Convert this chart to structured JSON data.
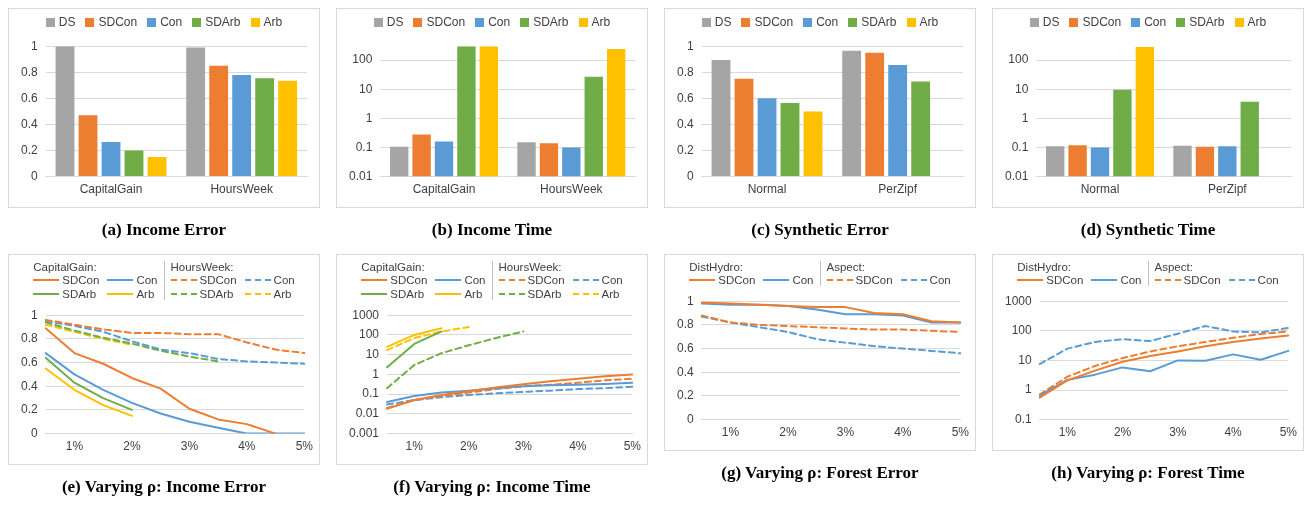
{
  "chart_data": [
    {
      "type": "bar",
      "title": "(a) Income Error",
      "categories": [
        "CapitalGain",
        "HoursWeek"
      ],
      "ylim": [
        0,
        1
      ],
      "yticks": [
        0,
        0.2,
        0.4,
        0.6,
        0.8,
        1
      ],
      "grid": "y",
      "legend": "top",
      "series": [
        {
          "name": "DS",
          "color": "#a5a5a5",
          "values": [
            1.0,
            0.99
          ]
        },
        {
          "name": "SDCon",
          "color": "#ed7d31",
          "values": [
            0.47,
            0.85
          ]
        },
        {
          "name": "Con",
          "color": "#5b9bd5",
          "values": [
            0.265,
            0.78
          ]
        },
        {
          "name": "SDArb",
          "color": "#70ad47",
          "values": [
            0.2,
            0.755
          ]
        },
        {
          "name": "Arb",
          "color": "#ffc000",
          "values": [
            0.15,
            0.735
          ]
        }
      ]
    },
    {
      "type": "bar",
      "title": "(b) Income Time",
      "categories": [
        "CapitalGain",
        "HoursWeek"
      ],
      "log": true,
      "ylim": [
        0.01,
        300
      ],
      "yticks": [
        0.01,
        0.1,
        1,
        10,
        100
      ],
      "grid": "y",
      "legend": "top",
      "series": [
        {
          "name": "DS",
          "color": "#a5a5a5",
          "values": [
            0.105,
            0.15
          ]
        },
        {
          "name": "SDCon",
          "color": "#ed7d31",
          "values": [
            0.28,
            0.14
          ]
        },
        {
          "name": "Con",
          "color": "#5b9bd5",
          "values": [
            0.16,
            0.1
          ]
        },
        {
          "name": "SDArb",
          "color": "#70ad47",
          "values": [
            300,
            27
          ]
        },
        {
          "name": "Arb",
          "color": "#ffc000",
          "values": [
            300,
            240
          ]
        }
      ]
    },
    {
      "type": "bar",
      "title": "(c) Synthetic Error",
      "categories": [
        "Normal",
        "PerZipf"
      ],
      "ylim": [
        0,
        1
      ],
      "yticks": [
        0,
        0.2,
        0.4,
        0.6,
        0.8,
        1
      ],
      "grid": "y",
      "legend": "top",
      "series": [
        {
          "name": "DS",
          "color": "#a5a5a5",
          "values": [
            0.895,
            0.965
          ]
        },
        {
          "name": "SDCon",
          "color": "#ed7d31",
          "values": [
            0.75,
            0.95
          ]
        },
        {
          "name": "Con",
          "color": "#5b9bd5",
          "values": [
            0.6,
            0.855
          ]
        },
        {
          "name": "SDArb",
          "color": "#70ad47",
          "values": [
            0.565,
            0.73
          ]
        },
        {
          "name": "Arb",
          "color": "#ffc000",
          "values": [
            0.5,
            null
          ]
        }
      ]
    },
    {
      "type": "bar",
      "title": "(d) Synthetic Time",
      "categories": [
        "Normal",
        "PerZipf"
      ],
      "log": true,
      "ylim": [
        0.01,
        300
      ],
      "yticks": [
        0.01,
        0.1,
        1,
        10,
        100
      ],
      "grid": "y",
      "legend": "top",
      "series": [
        {
          "name": "DS",
          "color": "#a5a5a5",
          "values": [
            0.11,
            0.115
          ]
        },
        {
          "name": "SDCon",
          "color": "#ed7d31",
          "values": [
            0.12,
            0.105
          ]
        },
        {
          "name": "Con",
          "color": "#5b9bd5",
          "values": [
            0.1,
            0.11
          ]
        },
        {
          "name": "SDArb",
          "color": "#70ad47",
          "values": [
            9.5,
            3.7
          ]
        },
        {
          "name": "Arb",
          "color": "#ffc000",
          "values": [
            280,
            null
          ]
        }
      ]
    },
    {
      "type": "line",
      "title": "(e) Varying ρ: Income Error",
      "categories": [
        null,
        "1%",
        null,
        "2%",
        null,
        "3%",
        null,
        "4%",
        null,
        "5%"
      ],
      "ylim": [
        0,
        1
      ],
      "yticks": [
        0,
        0.2,
        0.4,
        0.6,
        0.8,
        1
      ],
      "grid": "y",
      "legend": "top",
      "annotations": [
        "CapitalGain:",
        "HoursWeek:"
      ],
      "series": [
        {
          "name": "SDCon",
          "color": "#ed7d31",
          "line_style": "solid",
          "values": [
            0.89,
            0.68,
            0.59,
            0.47,
            0.38,
            0.21,
            0.12,
            0.08,
            0,
            null
          ]
        },
        {
          "name": "Con",
          "color": "#5b9bd5",
          "line_style": "solid",
          "values": [
            0.68,
            0.5,
            0.37,
            0.26,
            0.17,
            0.1,
            0.05,
            0,
            0,
            0
          ]
        },
        {
          "name": "SDArb",
          "color": "#70ad47",
          "line_style": "solid",
          "values": [
            0.64,
            0.43,
            0.3,
            0.2,
            null,
            null,
            null,
            null,
            null,
            null
          ]
        },
        {
          "name": "Arb",
          "color": "#ffc000",
          "line_style": "solid",
          "values": [
            0.55,
            0.37,
            0.24,
            0.15,
            null,
            null,
            null,
            null,
            null,
            null
          ]
        },
        {
          "name": "SDCon",
          "color": "#ed7d31",
          "line_style": "dashed",
          "values": [
            0.96,
            0.92,
            0.88,
            0.85,
            0.85,
            0.84,
            0.84,
            0.77,
            0.71,
            0.68
          ]
        },
        {
          "name": "Con",
          "color": "#5b9bd5",
          "line_style": "dashed",
          "values": [
            0.95,
            0.91,
            0.86,
            0.78,
            0.71,
            0.68,
            0.63,
            0.61,
            0.6,
            0.59
          ]
        },
        {
          "name": "SDArb",
          "color": "#70ad47",
          "line_style": "dashed",
          "values": [
            0.94,
            0.87,
            0.81,
            0.76,
            0.7,
            0.65,
            0.61,
            null,
            null,
            null
          ]
        },
        {
          "name": "Arb",
          "color": "#ffc000",
          "line_style": "dashed",
          "values": [
            0.92,
            0.86,
            0.8,
            0.75,
            null,
            null,
            null,
            null,
            null,
            null
          ]
        }
      ]
    },
    {
      "type": "line",
      "title": "(f) Varying ρ: Income Time",
      "categories": [
        null,
        "1%",
        null,
        "2%",
        null,
        "3%",
        null,
        "4%",
        null,
        "5%"
      ],
      "log": true,
      "ylim": [
        0.001,
        1000
      ],
      "yticks": [
        0.001,
        0.01,
        0.1,
        1,
        10,
        100,
        1000
      ],
      "grid": "y",
      "legend": "top",
      "annotations": [
        "CapitalGain:",
        "HoursWeek:"
      ],
      "series": [
        {
          "name": "SDCon",
          "color": "#ed7d31",
          "line_style": "solid",
          "values": [
            0.018,
            0.05,
            0.09,
            0.14,
            0.22,
            0.32,
            0.45,
            0.6,
            0.8,
            1.0
          ]
        },
        {
          "name": "Con",
          "color": "#5b9bd5",
          "line_style": "solid",
          "values": [
            0.04,
            0.08,
            0.12,
            0.15,
            0.2,
            0.25,
            0.28,
            0.3,
            0.33,
            0.38
          ]
        },
        {
          "name": "SDArb",
          "color": "#70ad47",
          "line_style": "solid",
          "values": [
            2.3,
            35,
            150,
            null,
            null,
            null,
            null,
            null,
            null,
            null
          ]
        },
        {
          "name": "Arb",
          "color": "#ffc000",
          "line_style": "solid",
          "values": [
            25,
            100,
            220,
            null,
            null,
            null,
            null,
            null,
            null,
            null
          ]
        },
        {
          "name": "SDCon",
          "color": "#ed7d31",
          "line_style": "dashed",
          "values": [
            0.02,
            0.05,
            0.08,
            0.12,
            0.18,
            0.25,
            0.3,
            0.38,
            0.5,
            0.6
          ]
        },
        {
          "name": "Con",
          "color": "#5b9bd5",
          "line_style": "dashed",
          "values": [
            0.03,
            0.05,
            0.07,
            0.09,
            0.11,
            0.13,
            0.15,
            0.18,
            0.2,
            0.24
          ]
        },
        {
          "name": "SDArb",
          "color": "#70ad47",
          "line_style": "dashed",
          "values": [
            0.2,
            3,
            12,
            30,
            70,
            150,
            null,
            null,
            null,
            null
          ]
        },
        {
          "name": "Arb",
          "color": "#ffc000",
          "line_style": "dashed",
          "values": [
            17,
            70,
            150,
            250,
            null,
            null,
            null,
            null,
            null,
            null
          ]
        }
      ]
    },
    {
      "type": "line",
      "title": "(g) Varying ρ: Forest Error",
      "categories": [
        null,
        "1%",
        null,
        "2%",
        null,
        "3%",
        null,
        "4%",
        null,
        "5%"
      ],
      "ylim": [
        0,
        1
      ],
      "yticks": [
        0,
        0.2,
        0.4,
        0.6,
        0.8,
        1
      ],
      "grid": "y",
      "legend": "top",
      "annotations": [
        "DistHydro:",
        "Aspect:"
      ],
      "series": [
        {
          "name": "SDCon",
          "color": "#ed7d31",
          "line_style": "solid",
          "values": [
            0.99,
            0.98,
            0.97,
            0.96,
            0.95,
            0.95,
            0.9,
            0.89,
            0.83,
            0.82
          ]
        },
        {
          "name": "Con",
          "color": "#5b9bd5",
          "line_style": "solid",
          "values": [
            0.98,
            0.97,
            0.97,
            0.96,
            0.93,
            0.89,
            0.89,
            0.88,
            0.82,
            0.82
          ]
        },
        {
          "name": "SDCon",
          "color": "#ed7d31",
          "line_style": "dashed",
          "values": [
            0.88,
            0.82,
            0.8,
            0.79,
            0.78,
            0.77,
            0.76,
            0.76,
            0.75,
            0.74
          ]
        },
        {
          "name": "Con",
          "color": "#5b9bd5",
          "line_style": "dashed",
          "values": [
            0.87,
            0.82,
            0.78,
            0.74,
            0.68,
            0.65,
            0.62,
            0.6,
            0.58,
            0.56
          ]
        }
      ]
    },
    {
      "type": "line",
      "title": "(h) Varying ρ: Forest Time",
      "categories": [
        null,
        "1%",
        null,
        "2%",
        null,
        "3%",
        null,
        "4%",
        null,
        "5%"
      ],
      "log": true,
      "ylim": [
        0.1,
        1000
      ],
      "yticks": [
        0.1,
        1,
        10,
        100,
        1000
      ],
      "grid": "y",
      "legend": "top",
      "annotations": [
        "DistHydro:",
        "Aspect:"
      ],
      "series": [
        {
          "name": "SDCon",
          "color": "#ed7d31",
          "line_style": "solid",
          "values": [
            0.55,
            2.1,
            4.5,
            9,
            14,
            20,
            30,
            42,
            55,
            70
          ]
        },
        {
          "name": "Con",
          "color": "#5b9bd5",
          "line_style": "solid",
          "values": [
            0.65,
            2.2,
            3.3,
            5.8,
            4.3,
            10,
            9.8,
            16,
            10.5,
            21
          ]
        },
        {
          "name": "SDCon",
          "color": "#ed7d31",
          "line_style": "dashed",
          "values": [
            0.7,
            2.8,
            6.5,
            12,
            20,
            30,
            42,
            58,
            78,
            95
          ]
        },
        {
          "name": "Con",
          "color": "#5b9bd5",
          "line_style": "dashed",
          "values": [
            7.5,
            25,
            42,
            52,
            45,
            80,
            145,
            95,
            88,
            125
          ]
        }
      ]
    }
  ]
}
